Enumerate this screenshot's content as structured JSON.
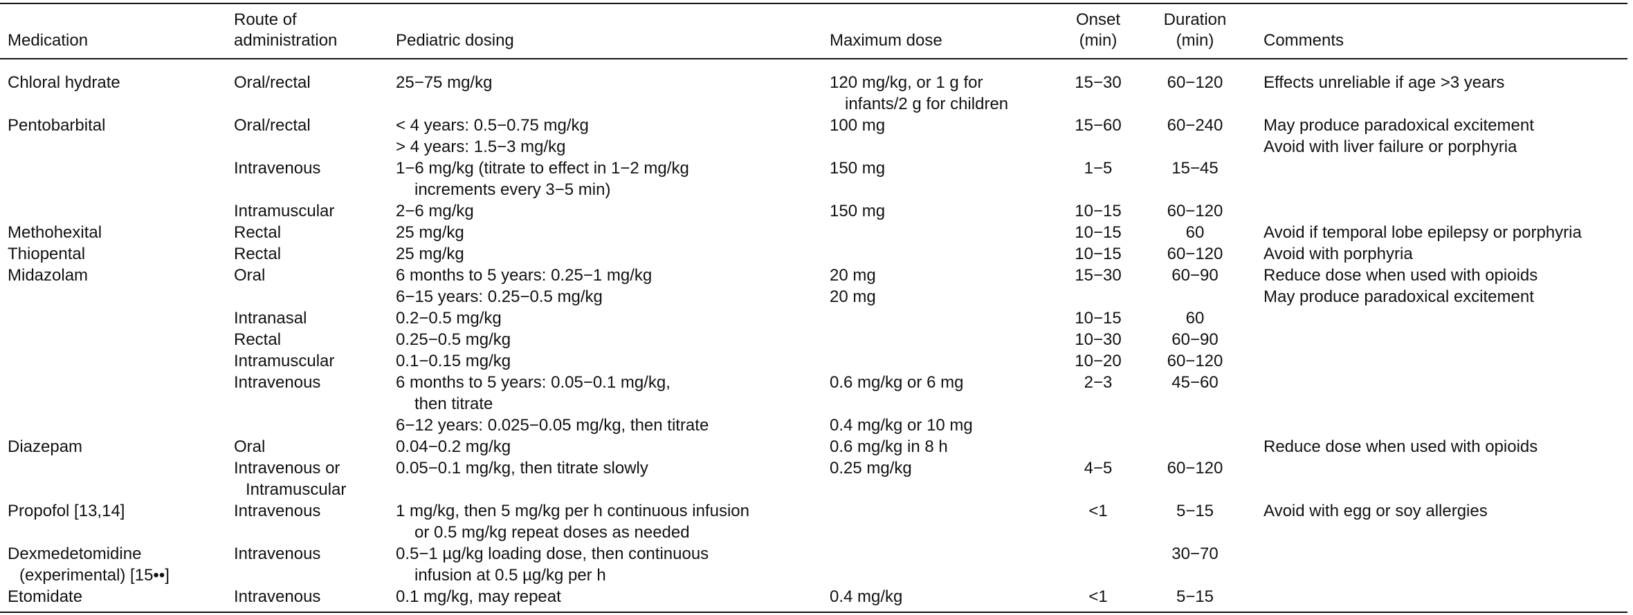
{
  "headers": {
    "medication": "Medication",
    "route_line1": "Route of",
    "route_line2": "administration",
    "dosing": "Pediatric dosing",
    "max_dose": "Maximum dose",
    "onset_line1": "Onset",
    "onset_line2": "(min)",
    "duration_line1": "Duration",
    "duration_line2": "(min)",
    "comments": "Comments"
  },
  "rows": [
    {
      "med": "Chloral hydrate",
      "route": "Oral/rectal",
      "dose": "25−75 mg/kg",
      "max": "120 mg/kg, or 1 g for",
      "onset": "15−30",
      "dur": "60−120",
      "comm": "Effects unreliable if age >3 years"
    },
    {
      "med": "",
      "route": "",
      "dose": "",
      "max": "infants/2 g for children",
      "max_indent": true,
      "onset": "",
      "dur": "",
      "comm": ""
    },
    {
      "med": "Pentobarbital",
      "route": "Oral/rectal",
      "dose": "< 4 years: 0.5−0.75 mg/kg",
      "max": "100 mg",
      "onset": "15−60",
      "dur": "60−240",
      "comm": "May produce paradoxical excitement"
    },
    {
      "med": "",
      "route": "",
      "dose": "> 4 years: 1.5−3 mg/kg",
      "max": "",
      "onset": "",
      "dur": "",
      "comm": "Avoid with liver failure or porphyria"
    },
    {
      "med": "",
      "route": "Intravenous",
      "dose": "1−6 mg/kg (titrate to effect in 1−2 mg/kg",
      "max": "150 mg",
      "onset": "1−5",
      "dur": "15−45",
      "comm": ""
    },
    {
      "med": "",
      "route": "",
      "dose": "increments every 3−5 min)",
      "dose_indent": true,
      "max": "",
      "onset": "",
      "dur": "",
      "comm": ""
    },
    {
      "med": "",
      "route": "Intramuscular",
      "dose": "2−6 mg/kg",
      "max": "150 mg",
      "onset": "10−15",
      "dur": "60−120",
      "comm": ""
    },
    {
      "med": "Methohexital",
      "route": "Rectal",
      "dose": "25 mg/kg",
      "max": "",
      "onset": "10−15",
      "dur": "60",
      "comm": "Avoid if temporal lobe epilepsy or porphyria"
    },
    {
      "med": "Thiopental",
      "route": "Rectal",
      "dose": "25 mg/kg",
      "max": "",
      "onset": "10−15",
      "dur": "60−120",
      "comm": "Avoid with porphyria"
    },
    {
      "med": "Midazolam",
      "route": "Oral",
      "dose": "6 months to 5 years: 0.25−1 mg/kg",
      "max": "20 mg",
      "onset": "15−30",
      "dur": "60−90",
      "comm": "Reduce dose when used with opioids"
    },
    {
      "med": "",
      "route": "",
      "dose": "6−15 years: 0.25−0.5 mg/kg",
      "max": "20 mg",
      "onset": "",
      "dur": "",
      "comm": "May produce paradoxical excitement"
    },
    {
      "med": "",
      "route": "Intranasal",
      "dose": "0.2−0.5 mg/kg",
      "max": "",
      "onset": "10−15",
      "dur": "60",
      "comm": ""
    },
    {
      "med": "",
      "route": "Rectal",
      "dose": "0.25−0.5 mg/kg",
      "max": "",
      "onset": "10−30",
      "dur": "60−90",
      "comm": ""
    },
    {
      "med": "",
      "route": "Intramuscular",
      "dose": "0.1−0.15 mg/kg",
      "max": "",
      "onset": "10−20",
      "dur": "60−120",
      "comm": ""
    },
    {
      "med": "",
      "route": "Intravenous",
      "dose": "6 months to 5 years: 0.05−0.1 mg/kg,",
      "max": "0.6 mg/kg or 6 mg",
      "onset": "2−3",
      "dur": "45−60",
      "comm": ""
    },
    {
      "med": "",
      "route": "",
      "dose": "then titrate",
      "dose_indent": true,
      "max": "",
      "onset": "",
      "dur": "",
      "comm": ""
    },
    {
      "med": "",
      "route": "",
      "dose": "6−12 years: 0.025−0.05 mg/kg, then titrate",
      "max": "0.4 mg/kg or 10 mg",
      "onset": "",
      "dur": "",
      "comm": ""
    },
    {
      "med": "Diazepam",
      "route": "Oral",
      "dose": "0.04−0.2 mg/kg",
      "max": "0.6 mg/kg in 8 h",
      "onset": "",
      "dur": "",
      "comm": "Reduce dose when used with opioids"
    },
    {
      "med": "",
      "route": "Intravenous or",
      "dose": "0.05−0.1 mg/kg, then titrate slowly",
      "max": "0.25 mg/kg",
      "onset": "4−5",
      "dur": "60−120",
      "comm": ""
    },
    {
      "med": "",
      "route": "Intramuscular",
      "route_indent": true,
      "dose": "",
      "max": "",
      "onset": "",
      "dur": "",
      "comm": ""
    },
    {
      "med": "Propofol [13,14]",
      "route": "Intravenous",
      "dose": "1 mg/kg, then 5 mg/kg per h continuous infusion",
      "max": "",
      "onset": "<1",
      "dur": "5−15",
      "comm": "Avoid with egg or soy allergies"
    },
    {
      "med": "",
      "route": "",
      "dose": "or 0.5 mg/kg repeat doses as needed",
      "dose_indent": true,
      "max": "",
      "onset": "",
      "dur": "",
      "comm": ""
    },
    {
      "med": "Dexmedetomidine",
      "route": "Intravenous",
      "dose": "0.5−1 µg/kg loading dose, then continuous",
      "max": "",
      "onset": "",
      "dur": "30−70",
      "comm": ""
    },
    {
      "med": "(experimental) [15••]",
      "med_indent": true,
      "route": "",
      "dose": "infusion at 0.5 µg/kg per h",
      "dose_indent": true,
      "max": "",
      "onset": "",
      "dur": "",
      "comm": ""
    },
    {
      "med": "Etomidate",
      "route": "Intravenous",
      "dose": "0.1 mg/kg, may repeat",
      "max": "0.4 mg/kg",
      "onset": "<1",
      "dur": "5−15",
      "comm": ""
    }
  ]
}
